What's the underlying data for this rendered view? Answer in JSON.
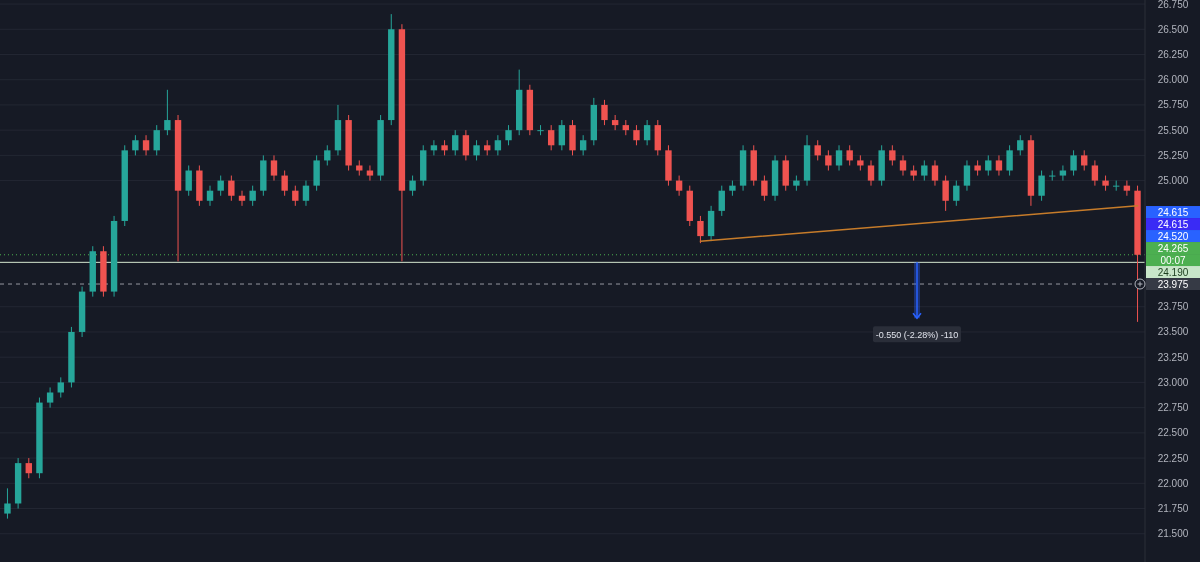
{
  "chart_data": {
    "type": "candlestick",
    "categories": [
      null,
      null,
      null,
      null,
      null,
      null,
      null,
      null,
      null,
      null,
      null,
      null,
      null,
      null,
      null,
      null,
      null,
      null,
      null,
      null,
      null,
      null,
      null,
      null,
      null,
      null,
      null,
      null,
      null,
      null,
      null,
      null,
      null,
      null,
      null,
      null,
      null,
      null,
      null,
      null,
      null,
      null,
      null,
      null,
      null,
      null,
      null,
      null,
      null,
      null,
      null,
      null,
      null,
      null,
      null,
      null,
      null,
      null,
      null,
      null,
      null,
      null,
      null,
      null,
      null,
      null,
      null,
      null,
      null,
      null,
      null,
      null,
      null,
      null,
      null,
      null,
      null,
      null,
      null,
      null,
      null,
      null,
      null,
      null,
      null,
      null,
      null,
      null,
      null,
      null,
      null,
      null,
      null,
      null,
      null,
      null,
      null,
      null,
      null,
      null,
      null,
      null,
      null,
      null,
      null,
      null,
      null
    ],
    "ohlc": [
      [
        21.7,
        21.95,
        21.65,
        21.8
      ],
      [
        21.8,
        22.25,
        21.75,
        22.2
      ],
      [
        22.2,
        22.25,
        22.05,
        22.1
      ],
      [
        22.1,
        22.85,
        22.05,
        22.8
      ],
      [
        22.8,
        22.95,
        22.75,
        22.9
      ],
      [
        22.9,
        23.05,
        22.85,
        23.0
      ],
      [
        23.0,
        23.55,
        22.95,
        23.5
      ],
      [
        23.5,
        23.95,
        23.45,
        23.9
      ],
      [
        23.9,
        24.35,
        23.85,
        24.3
      ],
      [
        24.3,
        24.35,
        23.85,
        23.9
      ],
      [
        23.9,
        24.65,
        23.85,
        24.6
      ],
      [
        24.6,
        25.35,
        24.55,
        25.3
      ],
      [
        25.3,
        25.45,
        25.25,
        25.4
      ],
      [
        25.4,
        25.45,
        25.25,
        25.3
      ],
      [
        25.3,
        25.55,
        25.25,
        25.5
      ],
      [
        25.5,
        25.9,
        25.45,
        25.6
      ],
      [
        25.6,
        25.65,
        24.2,
        24.9
      ],
      [
        24.9,
        25.15,
        24.85,
        25.1
      ],
      [
        25.1,
        25.15,
        24.75,
        24.8
      ],
      [
        24.8,
        24.95,
        24.75,
        24.9
      ],
      [
        24.9,
        25.05,
        24.85,
        25.0
      ],
      [
        25.0,
        25.05,
        24.8,
        24.85
      ],
      [
        24.85,
        24.9,
        24.75,
        24.8
      ],
      [
        24.8,
        24.95,
        24.75,
        24.9
      ],
      [
        24.9,
        25.25,
        24.85,
        25.2
      ],
      [
        25.2,
        25.25,
        25.0,
        25.05
      ],
      [
        25.05,
        25.1,
        24.85,
        24.9
      ],
      [
        24.9,
        24.95,
        24.75,
        24.8
      ],
      [
        24.8,
        25.0,
        24.75,
        24.95
      ],
      [
        24.95,
        25.25,
        24.9,
        25.2
      ],
      [
        25.2,
        25.35,
        25.15,
        25.3
      ],
      [
        25.3,
        25.75,
        25.25,
        25.6
      ],
      [
        25.6,
        25.65,
        25.1,
        25.15
      ],
      [
        25.15,
        25.2,
        25.05,
        25.1
      ],
      [
        25.1,
        25.15,
        25.0,
        25.05
      ],
      [
        25.05,
        25.65,
        25.0,
        25.6
      ],
      [
        25.6,
        26.65,
        25.55,
        26.5
      ],
      [
        26.5,
        26.55,
        24.2,
        24.9
      ],
      [
        24.9,
        25.05,
        24.85,
        25.0
      ],
      [
        25.0,
        25.35,
        24.95,
        25.3
      ],
      [
        25.3,
        25.4,
        25.25,
        25.35
      ],
      [
        25.35,
        25.4,
        25.25,
        25.3
      ],
      [
        25.3,
        25.5,
        25.25,
        25.45
      ],
      [
        25.45,
        25.5,
        25.2,
        25.25
      ],
      [
        25.25,
        25.4,
        25.2,
        25.35
      ],
      [
        25.35,
        25.4,
        25.25,
        25.3
      ],
      [
        25.3,
        25.45,
        25.25,
        25.4
      ],
      [
        25.4,
        25.55,
        25.35,
        25.5
      ],
      [
        25.5,
        26.1,
        25.45,
        25.9
      ],
      [
        25.9,
        25.95,
        25.45,
        25.5
      ],
      [
        25.5,
        25.55,
        25.45,
        25.5
      ],
      [
        25.5,
        25.55,
        25.3,
        25.35
      ],
      [
        25.35,
        25.6,
        25.3,
        25.55
      ],
      [
        25.55,
        25.6,
        25.25,
        25.3
      ],
      [
        25.3,
        25.45,
        25.25,
        25.4
      ],
      [
        25.4,
        25.82,
        25.35,
        25.75
      ],
      [
        25.75,
        25.8,
        25.55,
        25.6
      ],
      [
        25.6,
        25.65,
        25.5,
        25.55
      ],
      [
        25.55,
        25.6,
        25.45,
        25.5
      ],
      [
        25.5,
        25.55,
        25.35,
        25.4
      ],
      [
        25.4,
        25.6,
        25.35,
        25.55
      ],
      [
        25.55,
        25.6,
        25.25,
        25.3
      ],
      [
        25.3,
        25.35,
        24.95,
        25.0
      ],
      [
        25.0,
        25.05,
        24.85,
        24.9
      ],
      [
        24.9,
        24.95,
        24.55,
        24.6
      ],
      [
        24.6,
        24.65,
        24.38,
        24.45
      ],
      [
        24.45,
        24.75,
        24.4,
        24.7
      ],
      [
        24.7,
        24.95,
        24.65,
        24.9
      ],
      [
        24.9,
        25.0,
        24.85,
        24.95
      ],
      [
        24.95,
        25.35,
        24.9,
        25.3
      ],
      [
        25.3,
        25.35,
        24.95,
        25.0
      ],
      [
        25.0,
        25.05,
        24.8,
        24.85
      ],
      [
        24.85,
        25.25,
        24.8,
        25.2
      ],
      [
        25.2,
        25.25,
        24.9,
        24.95
      ],
      [
        24.95,
        25.05,
        24.9,
        25.0
      ],
      [
        25.0,
        25.45,
        24.95,
        25.35
      ],
      [
        25.35,
        25.4,
        25.2,
        25.25
      ],
      [
        25.25,
        25.3,
        25.1,
        25.15
      ],
      [
        25.15,
        25.35,
        25.1,
        25.3
      ],
      [
        25.3,
        25.35,
        25.15,
        25.2
      ],
      [
        25.2,
        25.25,
        25.1,
        25.15
      ],
      [
        25.15,
        25.2,
        24.95,
        25.0
      ],
      [
        25.0,
        25.35,
        24.95,
        25.3
      ],
      [
        25.3,
        25.35,
        25.15,
        25.2
      ],
      [
        25.2,
        25.25,
        25.05,
        25.1
      ],
      [
        25.1,
        25.15,
        25.0,
        25.05
      ],
      [
        25.05,
        25.2,
        25.0,
        25.15
      ],
      [
        25.15,
        25.2,
        24.95,
        25.0
      ],
      [
        25.0,
        25.05,
        24.7,
        24.8
      ],
      [
        24.8,
        25.0,
        24.75,
        24.95
      ],
      [
        24.95,
        25.2,
        24.9,
        25.15
      ],
      [
        25.15,
        25.2,
        25.05,
        25.1
      ],
      [
        25.1,
        25.25,
        25.05,
        25.2
      ],
      [
        25.2,
        25.25,
        25.05,
        25.1
      ],
      [
        25.1,
        25.35,
        25.05,
        25.3
      ],
      [
        25.3,
        25.45,
        25.25,
        25.4
      ],
      [
        25.4,
        25.45,
        24.75,
        24.85
      ],
      [
        24.85,
        25.1,
        24.8,
        25.05
      ],
      [
        25.05,
        25.1,
        25.0,
        25.05
      ],
      [
        25.05,
        25.15,
        25.0,
        25.1
      ],
      [
        25.1,
        25.3,
        25.05,
        25.25
      ],
      [
        25.25,
        25.3,
        25.1,
        25.15
      ],
      [
        25.15,
        25.2,
        24.95,
        25.0
      ],
      [
        25.0,
        25.05,
        24.9,
        24.95
      ],
      [
        24.95,
        25.0,
        24.9,
        24.95
      ],
      [
        24.95,
        25.0,
        24.85,
        24.9
      ],
      [
        24.9,
        24.95,
        23.6,
        24.265
      ]
    ],
    "series": [
      {
        "type": "line",
        "color": "#c77c2a",
        "values": [
          null,
          null,
          null,
          null,
          null,
          null,
          null,
          null,
          null,
          null,
          null,
          null,
          null,
          null,
          null,
          null,
          null,
          null,
          null,
          null,
          null,
          null,
          null,
          null,
          null,
          null,
          null,
          null,
          null,
          null,
          null,
          null,
          null,
          null,
          null,
          null,
          null,
          null,
          null,
          null,
          null,
          null,
          null,
          null,
          null,
          null,
          null,
          null,
          null,
          null,
          null,
          null,
          null,
          null,
          null,
          null,
          null,
          null,
          null,
          null,
          null,
          null,
          null,
          null,
          null,
          24.4,
          null,
          null,
          null,
          null,
          null,
          null,
          null,
          null,
          null,
          null,
          null,
          null,
          null,
          null,
          null,
          null,
          null,
          null,
          null,
          null,
          null,
          null,
          null,
          null,
          null,
          null,
          null,
          null,
          null,
          null,
          null,
          null,
          null,
          null,
          null,
          null,
          null,
          null,
          null,
          null,
          24.75
        ]
      }
    ],
    "ylim": [
      21.22,
      26.79
    ],
    "yticks": [
      {
        "value": 21.5,
        "label": "21.500"
      },
      {
        "value": 21.75,
        "label": "21.750"
      },
      {
        "value": 22,
        "label": "22.000"
      },
      {
        "value": 22.25,
        "label": "22.250"
      },
      {
        "value": 22.5,
        "label": "22.500"
      },
      {
        "value": 22.75,
        "label": "22.750"
      },
      {
        "value": 23,
        "label": "23.000"
      },
      {
        "value": 23.25,
        "label": "23.250"
      },
      {
        "value": 23.5,
        "label": "23.500"
      },
      {
        "value": 23.75,
        "label": "23.750"
      },
      {
        "value": 25,
        "label": "25.000"
      },
      {
        "value": 25.25,
        "label": "25.250"
      },
      {
        "value": 25.5,
        "label": "25.500"
      },
      {
        "value": 25.75,
        "label": "25.750"
      },
      {
        "value": 26,
        "label": "26.000"
      },
      {
        "value": 26.25,
        "label": "26.250"
      },
      {
        "value": 26.5,
        "label": "26.500"
      },
      {
        "value": 26.75,
        "label": "26.750"
      }
    ],
    "tick_labels": "y",
    "grid": "y",
    "ref_lines": [
      {
        "axis": "y",
        "value": 24.19,
        "color": "#d7e8d0",
        "line_style": "solid"
      },
      {
        "axis": "y",
        "value": 24.265,
        "color": "#4caf50",
        "line_style": "dotted"
      },
      {
        "axis": "y",
        "value": 23.975,
        "color": "#9598a1",
        "line_style": "dashed"
      }
    ],
    "annotations": [
      "24.615",
      "24.615",
      "24.520",
      "24.265",
      "00:07",
      "24.190",
      "23.975",
      "-0.550 (-2.28%) -110"
    ]
  }
}
